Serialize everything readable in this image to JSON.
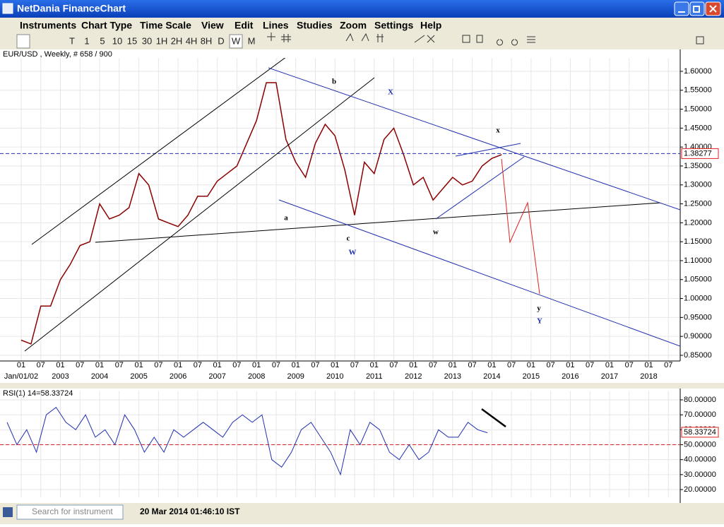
{
  "window": {
    "title": "NetDania FinanceChart"
  },
  "menu": [
    "Instruments",
    "Chart Type",
    "Time Scale",
    "View",
    "Edit",
    "Lines",
    "Studies",
    "Zoom",
    "Settings",
    "Help"
  ],
  "toolbar": [
    "T",
    "1",
    "5",
    "10",
    "15",
    "30",
    "1H",
    "2H",
    "4H",
    "8H",
    "D",
    "W",
    "M"
  ],
  "price_chart": {
    "header": "EUR/USD , Weekly, # 658 / 900",
    "ylim": [
      0.835,
      1.635
    ],
    "yticks": [
      {
        "value": 1.6,
        "label": "1.60000"
      },
      {
        "value": 1.55,
        "label": "1.55000"
      },
      {
        "value": 1.5,
        "label": "1.50000"
      },
      {
        "value": 1.45,
        "label": "1.45000"
      },
      {
        "value": 1.4,
        "label": "1.40000"
      },
      {
        "value": 1.35,
        "label": "1.35000"
      },
      {
        "value": 1.3,
        "label": "1.30000"
      },
      {
        "value": 1.25,
        "label": "1.25000"
      },
      {
        "value": 1.2,
        "label": "1.20000"
      },
      {
        "value": 1.15,
        "label": "1.15000"
      },
      {
        "value": 1.1,
        "label": "1.10000"
      },
      {
        "value": 1.05,
        "label": "1.05000"
      },
      {
        "value": 1.0,
        "label": "1.00000"
      },
      {
        "value": 0.95,
        "label": "0.95000"
      },
      {
        "value": 0.9,
        "label": "0.90000"
      },
      {
        "value": 0.85,
        "label": "0.85000"
      }
    ],
    "x_months": [
      "01",
      "07",
      "01",
      "07",
      "01",
      "07",
      "01",
      "07",
      "01",
      "07",
      "01",
      "07",
      "01",
      "07",
      "01",
      "07",
      "01",
      "07",
      "01",
      "07",
      "01",
      "07",
      "01",
      "07",
      "01",
      "07",
      "01",
      "07",
      "01",
      "07",
      "01",
      "07",
      "01",
      "07"
    ],
    "x_years": [
      "Jan/01/02",
      "2003",
      "2004",
      "2005",
      "2006",
      "2007",
      "2008",
      "2009",
      "2010",
      "2011",
      "2012",
      "2013",
      "2014",
      "2015",
      "2016",
      "2017",
      "2018"
    ],
    "price": [
      0.89,
      0.88,
      0.98,
      0.98,
      1.05,
      1.09,
      1.14,
      1.15,
      1.25,
      1.21,
      1.22,
      1.24,
      1.33,
      1.3,
      1.21,
      1.2,
      1.19,
      1.22,
      1.27,
      1.27,
      1.31,
      1.33,
      1.35,
      1.41,
      1.47,
      1.57,
      1.57,
      1.42,
      1.36,
      1.32,
      1.41,
      1.46,
      1.43,
      1.34,
      1.22,
      1.36,
      1.33,
      1.42,
      1.45,
      1.38,
      1.3,
      1.32,
      1.26,
      1.29,
      1.32,
      1.3,
      1.31,
      1.35,
      1.37,
      1.38
    ],
    "last": {
      "value": 1.38277,
      "label": "1.38277"
    },
    "annotations": [
      "b",
      "X",
      "x",
      "a",
      "c",
      "W",
      "w",
      "y",
      "Y"
    ]
  },
  "rsi_chart": {
    "header": "RSI(1) 14=58.33724",
    "ylim": [
      15,
      86
    ],
    "yticks": [
      {
        "value": 80,
        "label": "80.00000"
      },
      {
        "value": 70,
        "label": "70.00000"
      },
      {
        "value": 60,
        "label": "60.00000"
      },
      {
        "value": 50,
        "label": "50.00000"
      },
      {
        "value": 40,
        "label": "40.00000"
      },
      {
        "value": 30,
        "label": "30.00000"
      },
      {
        "value": 20,
        "label": "20.00000"
      }
    ],
    "reference": 50,
    "values": [
      65,
      50,
      60,
      45,
      70,
      75,
      65,
      60,
      70,
      55,
      60,
      50,
      70,
      60,
      45,
      55,
      45,
      60,
      55,
      60,
      65,
      60,
      55,
      65,
      70,
      65,
      70,
      40,
      35,
      45,
      60,
      65,
      55,
      45,
      30,
      60,
      50,
      65,
      60,
      45,
      40,
      50,
      40,
      45,
      60,
      55,
      55,
      65,
      60,
      58
    ],
    "last": {
      "value": 58.33724,
      "label": "58.33724"
    }
  },
  "status": {
    "search_placeholder": "Search for instrument",
    "datetime": "20 Mar 2014 01:46:10 IST"
  }
}
